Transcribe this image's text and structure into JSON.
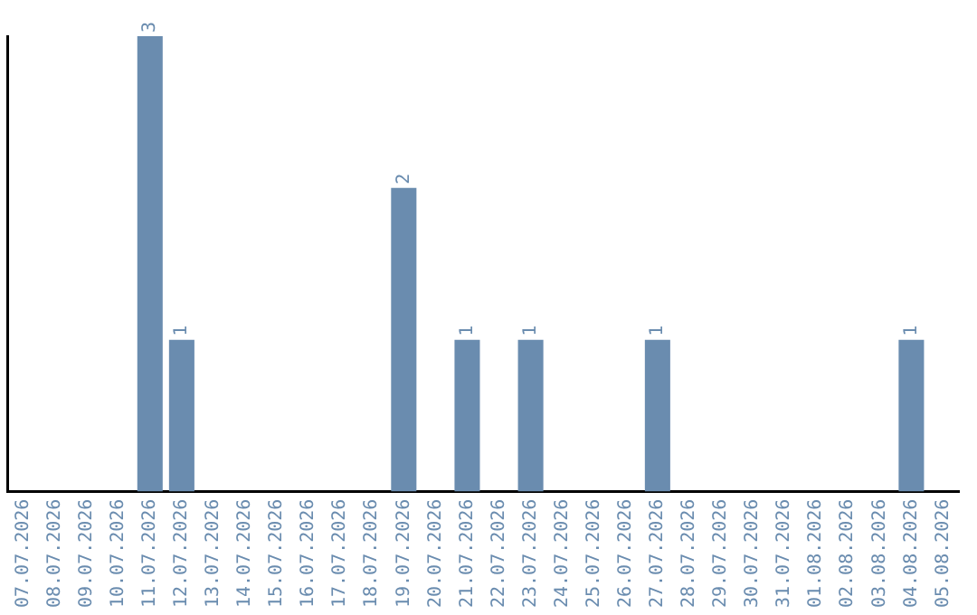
{
  "chart_data": {
    "type": "bar",
    "categories": [
      "07.07.2026",
      "08.07.2026",
      "09.07.2026",
      "10.07.2026",
      "11.07.2026",
      "12.07.2026",
      "13.07.2026",
      "14.07.2026",
      "15.07.2026",
      "16.07.2026",
      "17.07.2026",
      "18.07.2026",
      "19.07.2026",
      "20.07.2026",
      "21.07.2026",
      "22.07.2026",
      "23.07.2026",
      "24.07.2026",
      "25.07.2026",
      "26.07.2026",
      "27.07.2026",
      "28.07.2026",
      "29.07.2026",
      "30.07.2026",
      "31.07.2026",
      "01.08.2026",
      "02.08.2026",
      "03.08.2026",
      "04.08.2026",
      "05.08.2026"
    ],
    "values": [
      0,
      0,
      0,
      0,
      3,
      1,
      0,
      0,
      0,
      0,
      0,
      0,
      2,
      0,
      1,
      0,
      1,
      0,
      0,
      0,
      1,
      0,
      0,
      0,
      0,
      0,
      0,
      0,
      1,
      0
    ],
    "value_labels": [
      null,
      null,
      null,
      null,
      "3",
      "1",
      null,
      null,
      null,
      null,
      null,
      null,
      "2",
      null,
      "1",
      null,
      "1",
      null,
      null,
      null,
      "1",
      null,
      null,
      null,
      null,
      null,
      null,
      null,
      "1",
      null
    ],
    "color": "#6a8caf",
    "grid": false,
    "legend": false,
    "tick_labels": "x"
  }
}
